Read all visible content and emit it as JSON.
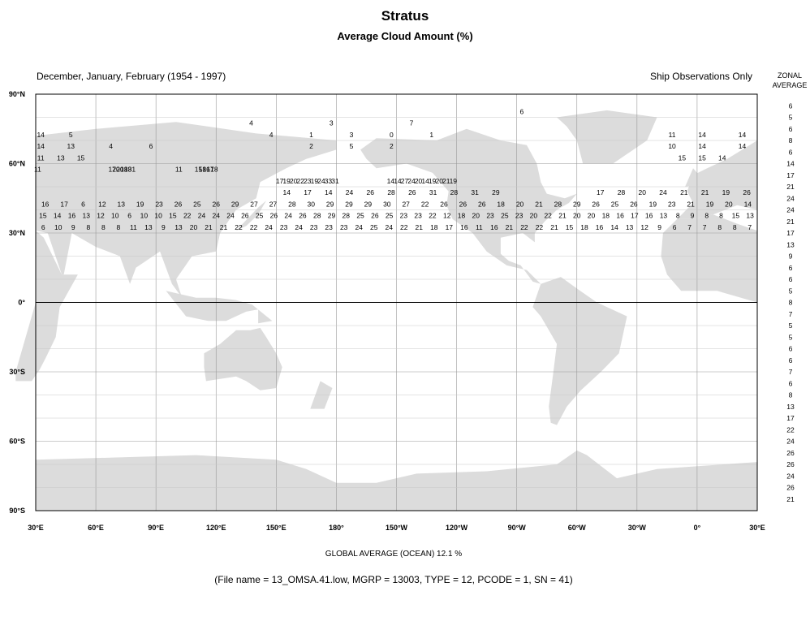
{
  "chart_data": {
    "type": "heatmap",
    "title": "Stratus",
    "subtitle": "Average Cloud Amount (%)",
    "season_label": "December, January, February (1954 - 1997)",
    "source_label": "Ship Observations Only",
    "zonal_header": [
      "ZONAL",
      "AVERAGE"
    ],
    "global_average_label": "GLOBAL AVERAGE (OCEAN)   12.1 %",
    "file_info": "(File name = 13_OMSA.41.low, MGRP = 13003, TYPE = 12, PCODE = 1, SN = 41)",
    "x_ticks": [
      "30°E",
      "60°E",
      "90°E",
      "120°E",
      "150°E",
      "180°",
      "150°W",
      "120°W",
      "90°W",
      "60°W",
      "30°W",
      "0°",
      "30°E"
    ],
    "y_ticks": [
      "90°N",
      "60°N",
      "30°N",
      "0°",
      "30°S",
      "60°S",
      "90°S"
    ],
    "xlim": [
      30,
      390
    ],
    "ylim": [
      -90,
      90
    ],
    "grid": true,
    "cell_size_deg": 5,
    "zonal_average": [
      "6",
      "5",
      "6",
      "8",
      "6",
      "14",
      "17",
      "21",
      "24",
      "24",
      "21",
      "17",
      "13",
      "9",
      "6",
      "6",
      "5",
      "8",
      "7",
      "5",
      "5",
      "6",
      "6",
      "7",
      "6",
      "8",
      "13",
      "17",
      "22",
      "24",
      "26",
      "26",
      "24",
      "26",
      "21"
    ],
    "rows": [
      {
        "lat": 87.5,
        "values": []
      },
      {
        "lat": 82.5,
        "values": [
          [
            272.5,
            "6"
          ]
        ]
      },
      {
        "lat": 77.5,
        "values": [
          [
            137.5,
            "4"
          ],
          [
            177.5,
            "3"
          ],
          [
            217.5,
            "7"
          ]
        ]
      },
      {
        "lat": 72.5,
        "values": [
          [
            32.5,
            "14"
          ],
          [
            47.5,
            "5"
          ],
          [
            147.5,
            "4"
          ],
          [
            167.5,
            "1"
          ],
          [
            187.5,
            "3"
          ],
          [
            207.5,
            "0"
          ],
          [
            227.5,
            "1"
          ],
          [
            347.5,
            "11"
          ],
          [
            362.5,
            "14"
          ],
          [
            382.5,
            "14"
          ]
        ]
      },
      {
        "lat": 67.5,
        "values": [
          [
            32.5,
            "14"
          ],
          [
            47.5,
            "13"
          ],
          [
            67.5,
            "4"
          ],
          [
            87.5,
            "6"
          ],
          [
            167.5,
            "2"
          ],
          [
            187.5,
            "5"
          ],
          [
            207.5,
            "2"
          ],
          [
            347.5,
            "10"
          ],
          [
            362.5,
            "14"
          ],
          [
            382.5,
            "14"
          ]
        ]
      },
      {
        "lat": 62.5,
        "values": [
          [
            32.5,
            "11"
          ],
          [
            42.5,
            "13"
          ],
          [
            52.5,
            "15"
          ],
          [
            352.5,
            "15"
          ],
          [
            362.5,
            "15"
          ],
          [
            372.5,
            "14"
          ]
        ]
      }
    ],
    "grid_rows_5deg": [
      {
        "lat": 57.5,
        "text": "11 . . . . . . . . . . . . . . . . . . 17 20 20 18 18 31 . . . . . . . . . . . 11 . . . . 15 18 16 17 18"
      },
      {
        "lat": 52.5,
        "text": "17 19 20 22 23 19 24 33 31 . . . . . . . 14 14 27 24 20 14 19 20 21 19"
      },
      {
        "lat": 47.5,
        "text": "14 17 14 24 26 28 26 31 28 31 29 . . . . 17 28 20 24 21 21 19 26"
      },
      {
        "lat": 42.5,
        "text": "16 17 6 12 13 19 23 26 25 26 29 27 27 28 30 29 29 29 30 27 22 26 26 26 18 20 21 28 29 26 25 26 19 23 21 19 20 14"
      },
      {
        "lat": 37.5,
        "text": "15 14 16 13 12 10 6 10 10 15 22 24 24 24 26 25 26 24 26 28 29 28 25 26 25 23 23 22 12 18 20 23 25 23 20 22 21 20 20 18 16 17 16 13 8 9 8 8 15 13"
      },
      {
        "lat": 32.5,
        "text": "6 10 9 8 8 8 11 13 9 13 20 21 21 22 22 24 23 24 23 23 23 24 25 24 22 21 18 17 16 11 16 21 22 22 21 15 18 16 14 13 12 9 6 7 7 8 8 7"
      }
    ],
    "notes": "Cell values transcribed approximately from the 5x5 degree map grid."
  }
}
